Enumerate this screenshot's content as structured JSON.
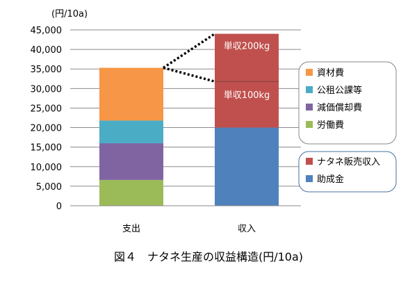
{
  "chart_data": {
    "type": "bar",
    "stacked": true,
    "unit_label": "(円/10a)",
    "caption": "図４　ナタネ生産の収益構造(円/10a)",
    "categories": [
      "支出",
      "収入"
    ],
    "ylim": [
      0,
      45000
    ],
    "yticks": [
      "0",
      "5,000",
      "10,000",
      "15,000",
      "20,000",
      "25,000",
      "30,000",
      "35,000",
      "40,000",
      "45,000"
    ],
    "grid": true,
    "series": [
      {
        "name": "労働費",
        "values": [
          6600,
          0
        ],
        "color": "#9BBB59"
      },
      {
        "name": "減価償却費",
        "values": [
          9400,
          0
        ],
        "color": "#8064A2"
      },
      {
        "name": "公租公課等",
        "values": [
          5800,
          0
        ],
        "color": "#4BACC6"
      },
      {
        "name": "資材費",
        "values": [
          13500,
          0
        ],
        "color": "#F79646"
      },
      {
        "name": "助成金",
        "values": [
          0,
          20000
        ],
        "color": "#4F81BD"
      },
      {
        "name": "ナタネ販売収入",
        "values": [
          0,
          24000
        ],
        "color": "#C0504D"
      }
    ],
    "annotations": [
      {
        "text": "単収200kg",
        "value": 44000
      },
      {
        "text": "単収100kg",
        "value": 31800
      }
    ],
    "legend_groups": [
      [
        "資材費",
        "公租公課等",
        "減価償却費",
        "労働費"
      ],
      [
        "ナタネ販売収入",
        "助成金"
      ]
    ]
  }
}
